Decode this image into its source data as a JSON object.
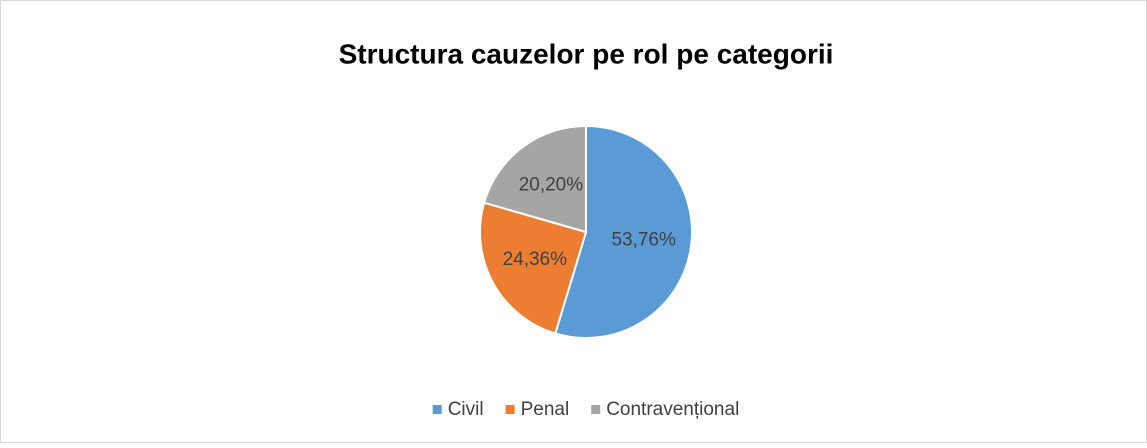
{
  "chart_data": {
    "type": "pie",
    "title": "Structura cauzelor pe rol pe categorii",
    "categories": [
      "Civil",
      "Penal",
      "Contravențional"
    ],
    "values": [
      53.76,
      24.36,
      20.2
    ],
    "value_labels": [
      "53,76%",
      "24,36%",
      "20,20%"
    ],
    "colors": [
      "#5b9bd5",
      "#ed7d31",
      "#a5a5a5"
    ],
    "legend": "bottom"
  }
}
